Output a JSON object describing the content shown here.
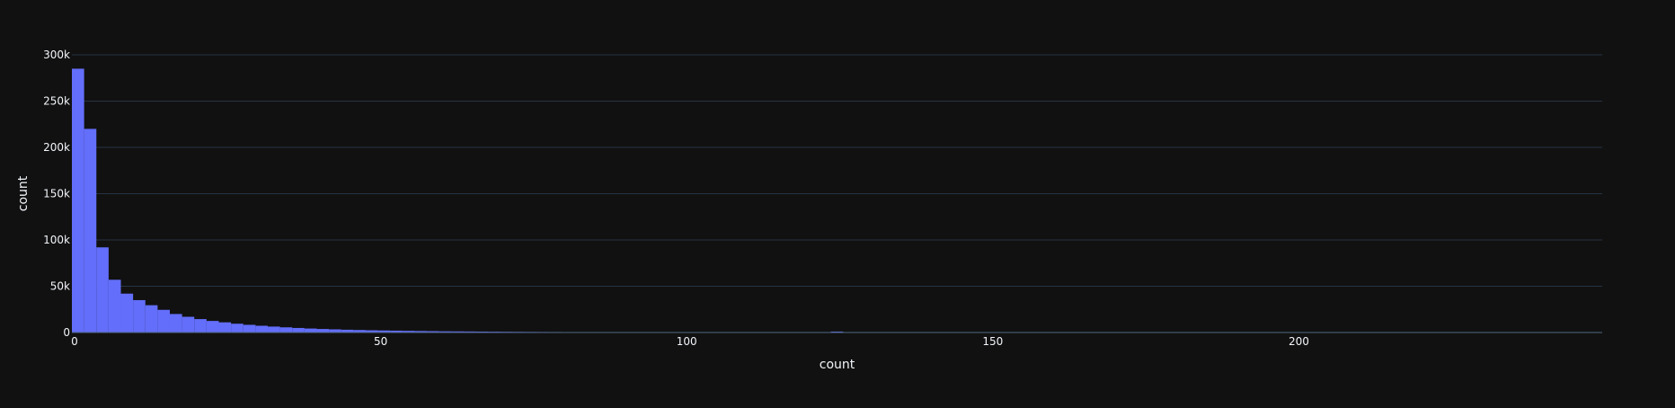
{
  "chart_data": {
    "type": "bar",
    "xlabel": "count",
    "ylabel": "count",
    "xlim": [
      0,
      250
    ],
    "ylim": [
      0,
      300000
    ],
    "bin_width": 2,
    "x_ticks": [
      0,
      50,
      100,
      150,
      200
    ],
    "x_tick_labels": [
      "0",
      "50",
      "100",
      "150",
      "200"
    ],
    "y_ticks": [
      0,
      50000,
      100000,
      150000,
      200000,
      250000,
      300000
    ],
    "y_tick_labels": [
      "0",
      "50k",
      "100k",
      "150k",
      "200k",
      "250k",
      "300k"
    ],
    "grid": true,
    "bar_color": "#636efa",
    "bins_start": [
      0,
      2,
      4,
      6,
      8,
      10,
      12,
      14,
      16,
      18,
      20,
      22,
      24,
      26,
      28,
      30,
      32,
      34,
      36,
      38,
      40,
      42,
      44,
      46,
      48,
      50,
      52,
      54,
      56,
      58,
      60,
      62,
      64,
      66,
      68,
      70,
      72,
      74,
      76,
      78,
      80,
      82,
      84,
      86,
      88,
      90,
      92,
      94,
      96,
      98,
      100,
      102,
      104,
      106,
      108,
      110,
      112,
      114,
      116,
      118,
      120,
      122,
      124,
      126,
      128,
      130,
      132,
      134,
      136,
      138,
      140,
      142,
      144,
      146,
      148,
      150,
      152,
      154,
      156,
      158,
      160,
      162,
      164,
      166,
      168,
      170,
      172,
      174,
      176,
      178,
      180,
      182,
      184,
      186,
      188,
      190,
      192,
      194,
      196,
      198,
      200,
      202,
      204,
      206,
      208,
      210,
      212,
      214,
      216,
      218,
      220,
      222,
      224,
      226,
      228,
      230,
      232,
      234,
      236,
      238,
      240,
      242,
      244,
      246,
      248
    ],
    "values": [
      285000,
      220000,
      92000,
      57000,
      42000,
      35000,
      29500,
      24500,
      20000,
      17000,
      14500,
      12500,
      11000,
      9500,
      8300,
      7300,
      6400,
      5600,
      4900,
      4300,
      3800,
      3400,
      3000,
      2700,
      2400,
      2200,
      2000,
      1800,
      1600,
      1450,
      1300,
      1200,
      1100,
      1000,
      900,
      800,
      720,
      650,
      590,
      540,
      490,
      450,
      410,
      380,
      350,
      320,
      300,
      280,
      260,
      240,
      220,
      200,
      185,
      170,
      155,
      140,
      130,
      120,
      110,
      100,
      95,
      500,
      1000,
      80,
      70,
      60,
      55,
      50,
      45,
      40,
      38,
      35,
      32,
      30,
      28,
      26,
      24,
      22,
      20,
      18,
      16,
      15,
      14,
      13,
      12,
      11,
      10,
      9,
      9,
      8,
      8,
      7,
      7,
      6,
      6,
      5,
      5,
      5,
      4,
      4,
      4,
      3,
      3,
      3,
      3,
      2,
      2,
      2,
      2,
      2,
      2,
      1,
      1,
      1,
      1,
      1,
      1,
      1,
      1,
      1,
      1,
      1,
      1,
      1,
      1
    ]
  }
}
